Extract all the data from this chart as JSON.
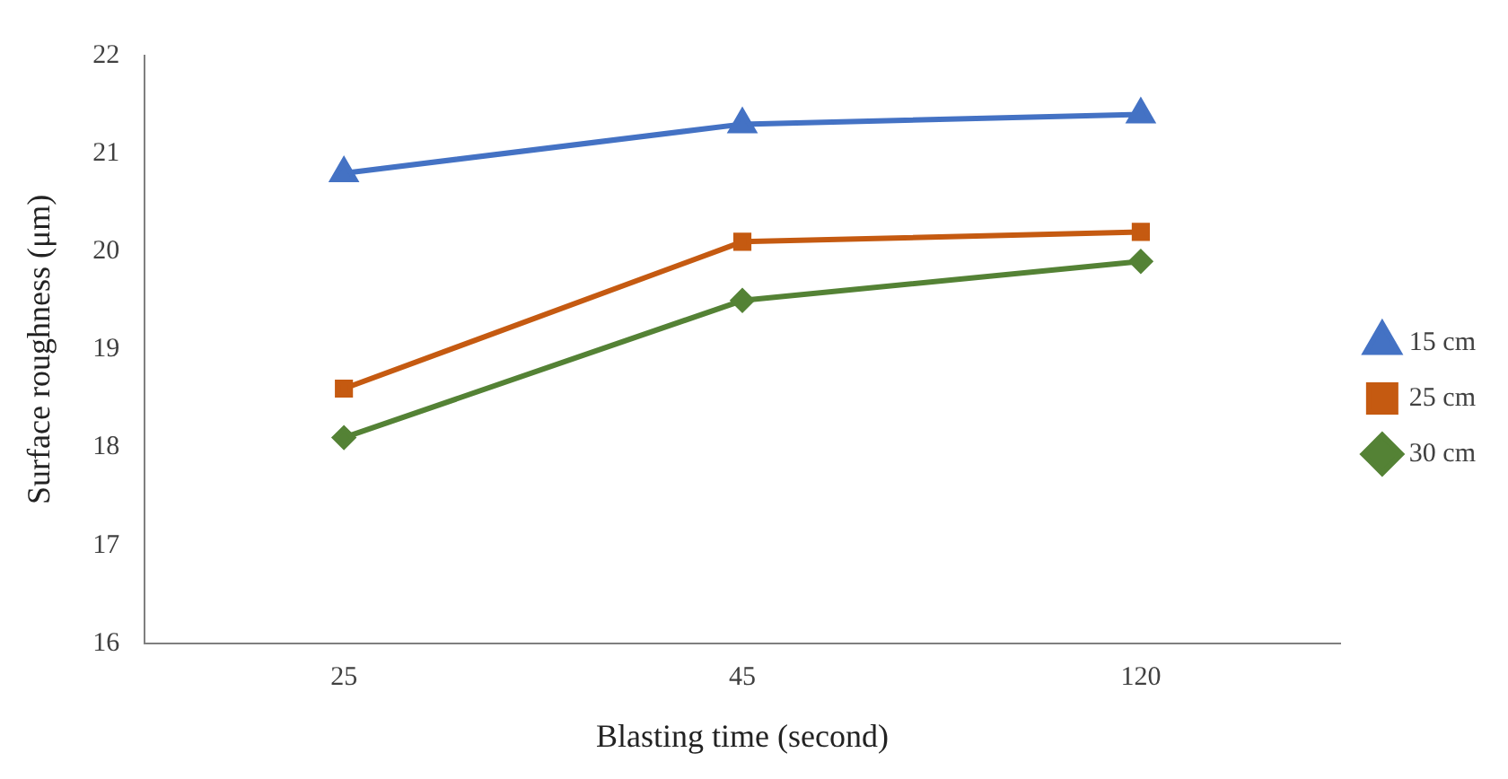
{
  "chart_data": {
    "type": "line",
    "xlabel": "Blasting time (second)",
    "ylabel": "Surface roughness (μm)",
    "categories": [
      "25",
      "45",
      "120"
    ],
    "series": [
      {
        "name": "15 cm",
        "color": "#4472c4",
        "marker": "triangle",
        "values": [
          20.8,
          21.3,
          21.4
        ]
      },
      {
        "name": "25 cm",
        "color": "#c55a11",
        "marker": "square",
        "values": [
          18.6,
          20.1,
          20.2
        ]
      },
      {
        "name": "30 cm",
        "color": "#548235",
        "marker": "diamond",
        "values": [
          18.1,
          19.5,
          19.9
        ]
      }
    ],
    "ylim": [
      16,
      22
    ],
    "yticks": [
      16,
      17,
      18,
      19,
      20,
      21,
      22
    ],
    "grid": false,
    "legend": "right",
    "line_style": "solid"
  }
}
